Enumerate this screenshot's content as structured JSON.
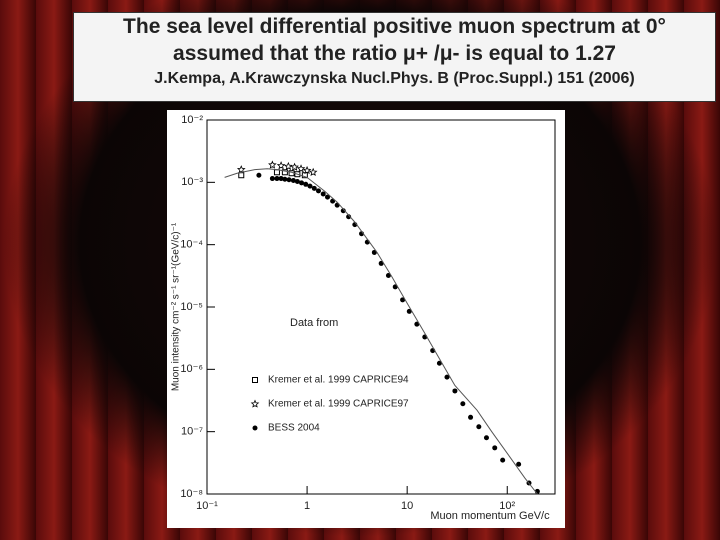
{
  "slide": {
    "title_lines": [
      "The sea level differential positive  muon spectrum at 0°",
      "assumed  that the ratio μ+ /μ- is equal to 1.27"
    ],
    "reference": "J.Kempa, A.Krawczynska Nucl.Phys. B (Proc.Suppl.) 151 (2006)"
  },
  "chart_data": {
    "type": "scatter",
    "x_label": "Muon momentum GeV/c",
    "y_label": "Muon intensity cm⁻² s⁻¹ sr⁻¹(GeV/c)⁻¹",
    "legend_title": "Data from",
    "log_x": true,
    "log_y": true,
    "xlim": [
      0.1,
      300
    ],
    "ylim": [
      1e-08,
      0.01
    ],
    "xticks": [
      {
        "value": 0.1,
        "label": "10⁻¹"
      },
      1,
      10,
      {
        "value": 100,
        "label": "10²"
      }
    ],
    "yticks": [
      {
        "value": 0.01,
        "label": "10⁻²"
      },
      {
        "value": 0.001,
        "label": "10⁻³"
      },
      {
        "value": 0.0001,
        "label": "10⁻⁴"
      },
      {
        "value": 1e-05,
        "label": "10⁻⁵"
      },
      {
        "value": 1e-06,
        "label": "10⁻⁶"
      },
      {
        "value": 1e-07,
        "label": "10⁻⁷"
      },
      {
        "value": 1e-08,
        "label": "10⁻⁸"
      }
    ],
    "series": [
      {
        "name": "Kremer et al. 1999 CAPRICE94",
        "marker": "square",
        "color": "#000000",
        "x": [
          0.22,
          0.5,
          0.6,
          0.7,
          0.8,
          0.95
        ],
        "values": [
          0.0013,
          0.00145,
          0.00145,
          0.0014,
          0.00135,
          0.0013
        ]
      },
      {
        "name": "Kremer et al. 1999 CAPRICE97",
        "marker": "star",
        "color": "#000000",
        "x": [
          0.22,
          0.45,
          0.55,
          0.65,
          0.75,
          0.87,
          1.0,
          1.15
        ],
        "values": [
          0.0016,
          0.0019,
          0.00185,
          0.0018,
          0.00175,
          0.00165,
          0.00155,
          0.00145
        ]
      },
      {
        "name": "BESS 2004",
        "marker": "circle",
        "color": "#000000",
        "x": [
          0.33,
          0.45,
          0.5,
          0.55,
          0.6,
          0.66,
          0.73,
          0.8,
          0.88,
          0.97,
          1.07,
          1.18,
          1.3,
          1.45,
          1.6,
          1.8,
          2.0,
          2.3,
          2.6,
          3.0,
          3.5,
          4.0,
          4.7,
          5.5,
          6.5,
          7.6,
          9.0,
          10.5,
          12.5,
          15,
          18,
          21,
          25,
          30,
          36,
          43,
          52,
          62,
          75,
          90,
          130,
          165,
          200
        ],
        "values": [
          0.0013,
          0.00115,
          0.00115,
          0.00115,
          0.00112,
          0.0011,
          0.00107,
          0.00103,
          0.00098,
          0.00093,
          0.00087,
          0.0008,
          0.00073,
          0.00065,
          0.00058,
          0.0005,
          0.00043,
          0.00035,
          0.00028,
          0.00021,
          0.00015,
          0.00011,
          7.5e-05,
          5e-05,
          3.2e-05,
          2.1e-05,
          1.3e-05,
          8.5e-06,
          5.3e-06,
          3.3e-06,
          2e-06,
          1.25e-06,
          7.5e-07,
          4.5e-07,
          2.8e-07,
          1.7e-07,
          1.2e-07,
          8e-08,
          5.5e-08,
          3.5e-08,
          3e-08,
          1.5e-08,
          1.1e-08
        ]
      },
      {
        "marker": "line",
        "color": "#555555",
        "x": [
          0.15,
          0.2,
          0.3,
          0.4,
          0.5,
          0.7,
          1,
          1.5,
          2,
          3,
          5,
          7,
          10,
          15,
          20,
          30,
          50,
          70,
          100,
          150,
          200
        ],
        "values": [
          0.0012,
          0.0014,
          0.0016,
          0.00165,
          0.0016,
          0.00145,
          0.0012,
          0.00072,
          0.00048,
          0.00023,
          7.5e-05,
          3.1e-05,
          1.15e-05,
          3.8e-06,
          1.7e-06,
          5.5e-07,
          2.2e-07,
          1e-07,
          4.5e-08,
          1.8e-08,
          1e-08
        ]
      }
    ]
  }
}
